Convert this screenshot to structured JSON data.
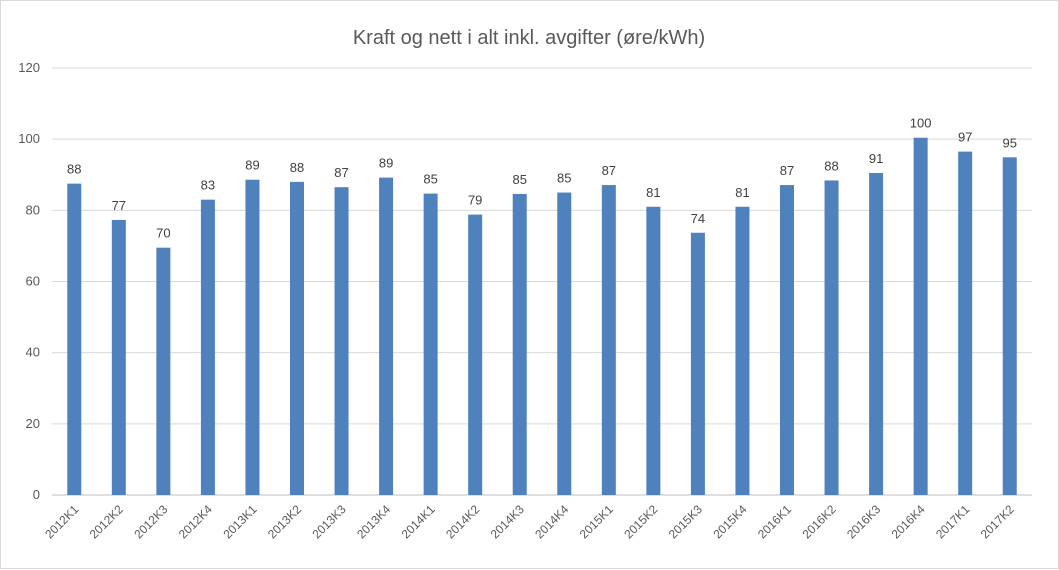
{
  "chart_data": {
    "type": "bar",
    "title": "Kraft og nett i alt inkl. avgifter (øre/kWh)",
    "xlabel": "",
    "ylabel": "",
    "ylim": [
      0,
      120
    ],
    "yticks": [
      0,
      20,
      40,
      60,
      80,
      100,
      120
    ],
    "grid": true,
    "legend": "none",
    "bar_color": "#4f81bd",
    "categories": [
      "2012K1",
      "2012K2",
      "2012K3",
      "2012K4",
      "2013K1",
      "2013K2",
      "2013K3",
      "2013K4",
      "2014K1",
      "2014K2",
      "2014K3",
      "2014K4",
      "2015K1",
      "2015K2",
      "2015K3",
      "2015K4",
      "2016K1",
      "2016K2",
      "2016K3",
      "2016K4",
      "2017K1",
      "2017K2"
    ],
    "values": [
      87.5,
      77.3,
      69.5,
      83.0,
      88.6,
      88.0,
      86.5,
      89.2,
      84.7,
      78.8,
      84.6,
      85.0,
      87.1,
      81.0,
      73.7,
      81.0,
      87.1,
      88.4,
      90.5,
      100.4,
      96.5,
      94.9
    ],
    "data_labels": [
      "88",
      "77",
      "70",
      "83",
      "89",
      "88",
      "87",
      "89",
      "85",
      "79",
      "85",
      "85",
      "87",
      "81",
      "74",
      "81",
      "87",
      "88",
      "91",
      "100",
      "97",
      "95"
    ]
  }
}
